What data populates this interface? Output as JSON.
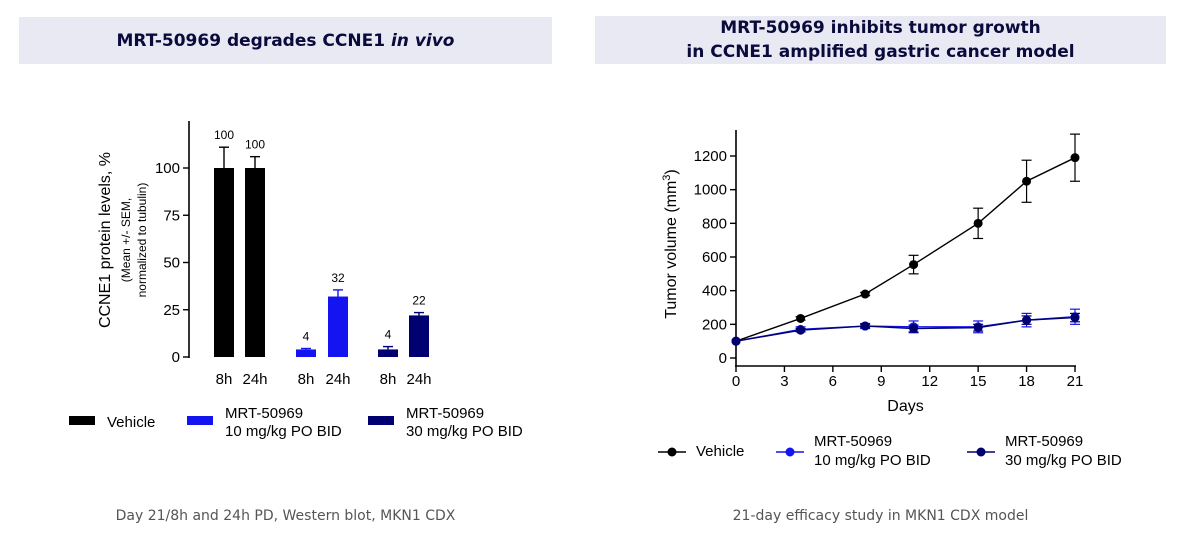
{
  "left_panel": {
    "title_prefix": "MRT-50969 degrades CCNE1 ",
    "title_italic": "in vivo",
    "caption": "Day 21/8h and 24h PD, Western blot, MKN1 CDX"
  },
  "right_panel": {
    "title_line1": "MRT-50969 inhibits tumor growth",
    "title_line2": "in CCNE1 amplified gastric cancer model",
    "caption": "21-day efficacy study in MKN1 CDX model"
  },
  "chart_data": [
    {
      "type": "bar",
      "title": "MRT-50969 degrades CCNE1 in vivo",
      "ylabel": "CCNE1 protein levels, %",
      "ylabel_sub1": "(Mean +/- SEM,",
      "ylabel_sub2": "normalized to tubulin)",
      "ylim": [
        0,
        125
      ],
      "yticks": [
        0,
        25,
        50,
        75,
        100
      ],
      "groups": [
        {
          "name": "Vehicle",
          "legend_line1": "Vehicle",
          "legend_line2": "",
          "color": "#000000",
          "categories": [
            "8h",
            "24h"
          ],
          "values": [
            100,
            100
          ],
          "errors": [
            11,
            6
          ],
          "labels": [
            "100",
            "100"
          ]
        },
        {
          "name": "MRT-50969 10 mg/kg PO BID",
          "legend_line1": "MRT-50969",
          "legend_line2": "10 mg/kg PO BID",
          "color": "#1414f0",
          "categories": [
            "8h",
            "24h"
          ],
          "values": [
            4,
            32
          ],
          "errors": [
            0.5,
            3.5
          ],
          "labels": [
            "4",
            "32"
          ]
        },
        {
          "name": "MRT-50969 30 mg/kg PO BID",
          "legend_line1": "MRT-50969",
          "legend_line2": "30 mg/kg PO BID",
          "color": "#000070",
          "categories": [
            "8h",
            "24h"
          ],
          "values": [
            4,
            22
          ],
          "errors": [
            1.5,
            1.5
          ],
          "labels": [
            "4",
            "22"
          ]
        }
      ]
    },
    {
      "type": "line",
      "title": "MRT-50969 inhibits tumor growth in CCNE1 amplified gastric cancer model",
      "xlabel": "Days",
      "ylabel": "Tumor volume (mm",
      "ylabel_sup": "3",
      "ylabel_end": ")",
      "xlim": [
        0,
        21
      ],
      "ylim": [
        0,
        1350
      ],
      "xticks": [
        0,
        3,
        6,
        9,
        12,
        15,
        18,
        21
      ],
      "yticks": [
        0,
        200,
        400,
        600,
        800,
        1000,
        1200
      ],
      "series": [
        {
          "name": "Vehicle",
          "legend_line1": "Vehicle",
          "legend_line2": "",
          "color": "#000000",
          "x": [
            0,
            4,
            8,
            11,
            15,
            18,
            21
          ],
          "y": [
            100,
            235,
            380,
            555,
            800,
            1050,
            1190
          ],
          "err": [
            0,
            10,
            10,
            55,
            90,
            125,
            140
          ]
        },
        {
          "name": "MRT-50969 10 mg/kg PO BID",
          "legend_line1": "MRT-50969",
          "legend_line2": "10 mg/kg PO BID",
          "color": "#1414f0",
          "x": [
            0,
            4,
            8,
            11,
            15,
            18,
            21
          ],
          "y": [
            100,
            170,
            190,
            185,
            185,
            225,
            245
          ],
          "err": [
            0,
            15,
            15,
            35,
            35,
            40,
            45
          ]
        },
        {
          "name": "MRT-50969 30 mg/kg PO BID",
          "legend_line1": "MRT-50969",
          "legend_line2": "30 mg/kg PO BID",
          "color": "#000070",
          "x": [
            0,
            4,
            8,
            11,
            15,
            18,
            21
          ],
          "y": [
            100,
            165,
            190,
            175,
            180,
            225,
            240
          ],
          "err": [
            0,
            10,
            10,
            20,
            20,
            25,
            25
          ]
        }
      ]
    }
  ]
}
